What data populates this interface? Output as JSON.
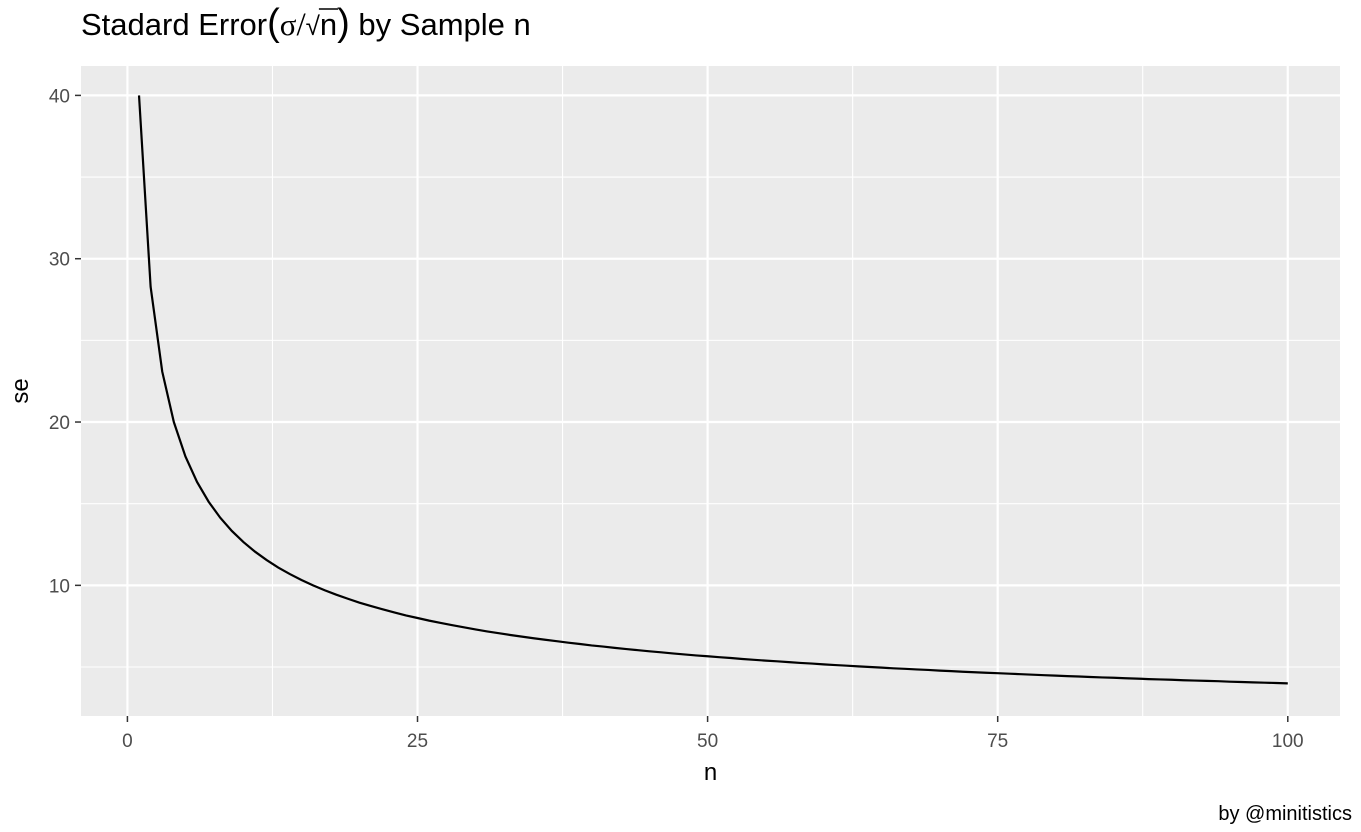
{
  "chart_data": {
    "type": "line",
    "title": {
      "prefix": "Stadard Error",
      "open_paren": "(",
      "sigma": "σ",
      "slash": "/",
      "radical": "√",
      "radicand": "n",
      "close_paren": ")",
      "suffix": " by Sample n"
    },
    "xlabel": "n",
    "ylabel": "se",
    "caption": "by @minitistics",
    "xlim": [
      -4,
      104.5
    ],
    "ylim": [
      2.0,
      41.8
    ],
    "x_ticks": [
      0,
      25,
      50,
      75,
      100
    ],
    "x_tick_labels": [
      "0",
      "25",
      "50",
      "75",
      "100"
    ],
    "x_minor_ticks": [
      12.5,
      37.5,
      62.5,
      87.5
    ],
    "y_ticks": [
      10,
      20,
      30,
      40
    ],
    "y_tick_labels": [
      "10",
      "20",
      "30",
      "40"
    ],
    "y_minor_ticks": [
      5,
      15,
      25,
      35
    ],
    "grid": true,
    "series": [
      {
        "x": [
          1,
          2,
          3,
          4,
          5,
          6,
          7,
          8,
          9,
          10,
          11,
          12,
          13,
          14,
          15,
          16,
          17,
          18,
          19,
          20,
          21,
          22,
          23,
          24,
          25,
          26,
          27,
          28,
          29,
          30,
          31,
          32,
          33,
          34,
          35,
          36,
          37,
          38,
          39,
          40,
          41,
          42,
          43,
          44,
          45,
          46,
          47,
          48,
          49,
          50,
          51,
          52,
          53,
          54,
          55,
          56,
          57,
          58,
          59,
          60,
          61,
          62,
          63,
          64,
          65,
          66,
          67,
          68,
          69,
          70,
          71,
          72,
          73,
          74,
          75,
          76,
          77,
          78,
          79,
          80,
          81,
          82,
          83,
          84,
          85,
          86,
          87,
          88,
          89,
          90,
          91,
          92,
          93,
          94,
          95,
          96,
          97,
          98,
          99,
          100
        ],
        "y": [
          40.0,
          28.28,
          23.09,
          20.0,
          17.89,
          16.33,
          15.12,
          14.14,
          13.33,
          12.65,
          12.06,
          11.55,
          11.09,
          10.69,
          10.33,
          10.0,
          9.7,
          9.43,
          9.18,
          8.94,
          8.73,
          8.53,
          8.34,
          8.16,
          8.0,
          7.84,
          7.7,
          7.56,
          7.43,
          7.3,
          7.18,
          7.07,
          6.96,
          6.86,
          6.76,
          6.67,
          6.58,
          6.49,
          6.41,
          6.32,
          6.25,
          6.17,
          6.1,
          6.03,
          5.96,
          5.9,
          5.83,
          5.77,
          5.71,
          5.66,
          5.6,
          5.55,
          5.49,
          5.44,
          5.39,
          5.35,
          5.3,
          5.25,
          5.21,
          5.16,
          5.12,
          5.08,
          5.04,
          5.0,
          4.96,
          4.92,
          4.89,
          4.85,
          4.82,
          4.78,
          4.75,
          4.71,
          4.68,
          4.65,
          4.62,
          4.59,
          4.56,
          4.53,
          4.5,
          4.47,
          4.44,
          4.42,
          4.39,
          4.36,
          4.34,
          4.31,
          4.29,
          4.26,
          4.24,
          4.22,
          4.19,
          4.17,
          4.15,
          4.13,
          4.1,
          4.08,
          4.06,
          4.04,
          4.02,
          4.0
        ],
        "color": "#000000"
      }
    ],
    "colors": {
      "panel": "#ebebeb",
      "grid": "#ffffff",
      "tick_text": "#4d4d4d",
      "tick_mark": "#333333",
      "line": "#000000"
    }
  }
}
